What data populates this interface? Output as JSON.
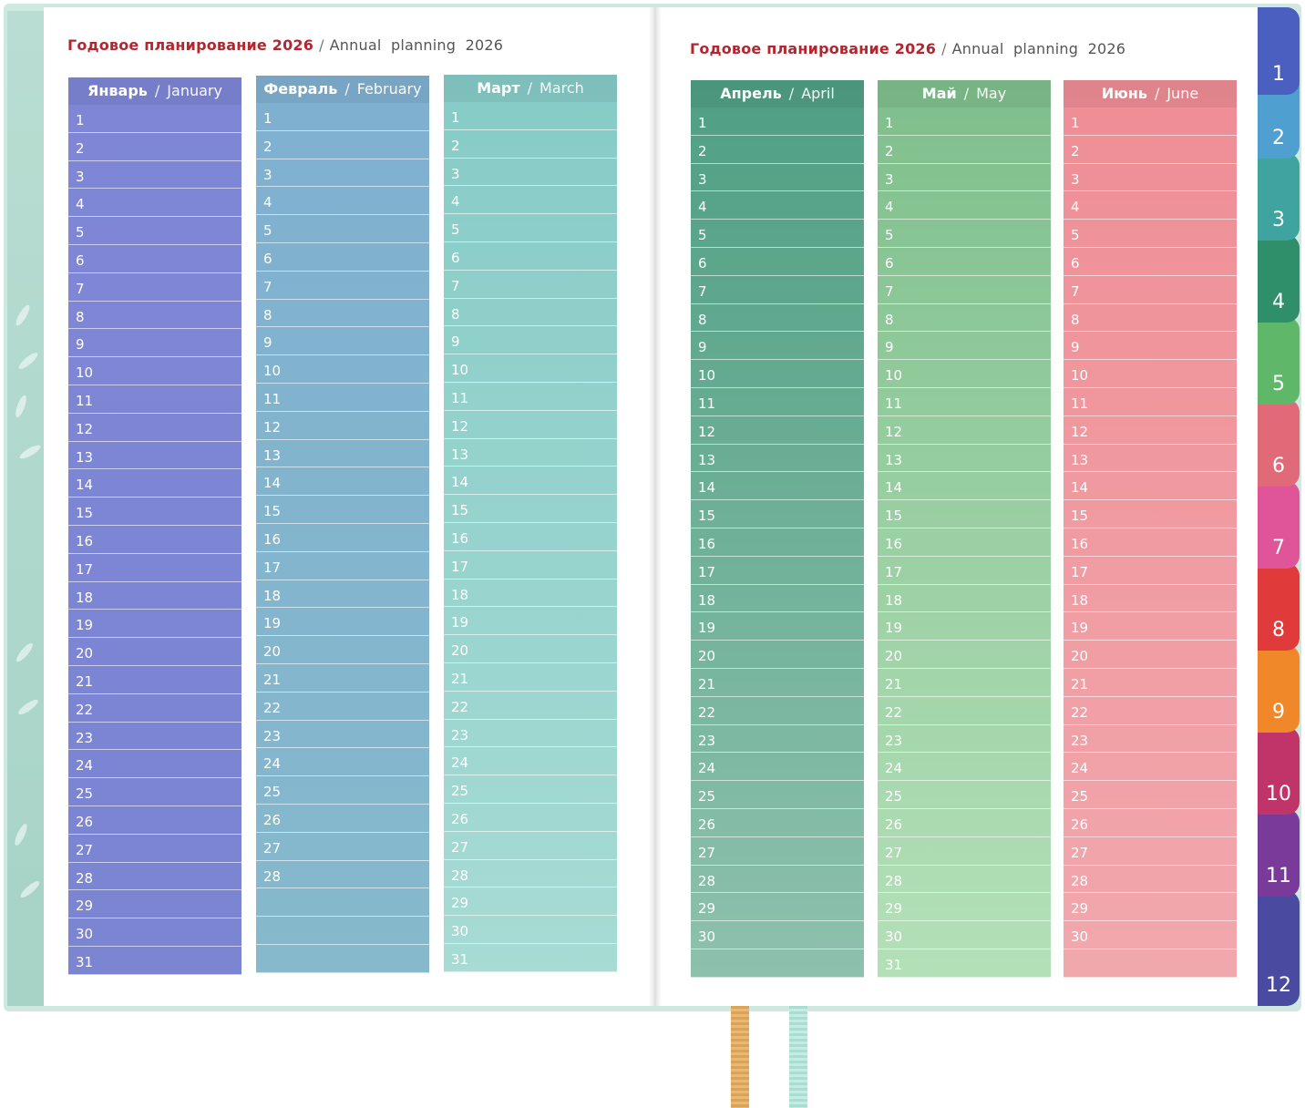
{
  "left_page": {
    "header": {
      "ru": "Годовое планирование 2026",
      "sep": "/",
      "en": "Annual  planning  2026"
    },
    "months": [
      {
        "ru": "Январь",
        "en": "January",
        "days": 31,
        "color_top": "#7f86d6",
        "color_bottom": "#7b85d2"
      },
      {
        "ru": "Февраль",
        "en": "February",
        "days": 28,
        "color_top": "#7fb0d0",
        "color_bottom": "#86b9cc"
      },
      {
        "ru": "Март",
        "en": "March",
        "days": 31,
        "color_top": "#86cbc7",
        "color_bottom": "#a7dbd4"
      }
    ]
  },
  "right_page": {
    "header": {
      "ru": "Годовое планирование 2026",
      "sep": "/",
      "en": "Annual  planning  2026"
    },
    "months": [
      {
        "ru": "Апрель",
        "en": "April",
        "days": 30,
        "color_top": "#4f9f84",
        "color_bottom": "#8ec1ad"
      },
      {
        "ru": "Май",
        "en": "May",
        "days": 31,
        "color_top": "#7fbf8c",
        "color_bottom": "#b4e0b8"
      },
      {
        "ru": "Июнь",
        "en": "June",
        "days": 30,
        "color_top": "#ef8d95",
        "color_bottom": "#f1a8ad"
      }
    ]
  },
  "month_tabs": [
    {
      "label": "1",
      "color": "#4a5fbf"
    },
    {
      "label": "2",
      "color": "#4f9fd0"
    },
    {
      "label": "3",
      "color": "#3fa4a0"
    },
    {
      "label": "4",
      "color": "#2f8f6a"
    },
    {
      "label": "5",
      "color": "#5fb86a"
    },
    {
      "label": "6",
      "color": "#e06a78"
    },
    {
      "label": "7",
      "color": "#e0559a"
    },
    {
      "label": "8",
      "color": "#e03a3a"
    },
    {
      "label": "9",
      "color": "#f0882a"
    },
    {
      "label": "10",
      "color": "#c0346a"
    },
    {
      "label": "11",
      "color": "#7a3a9a"
    },
    {
      "label": "12",
      "color": "#4a4aa0"
    }
  ],
  "ribbons": [
    {
      "name": "bookmark-ribbon-orange",
      "color": "#e0aa66"
    },
    {
      "name": "bookmark-ribbon-mint",
      "color": "#b7e3da"
    }
  ]
}
